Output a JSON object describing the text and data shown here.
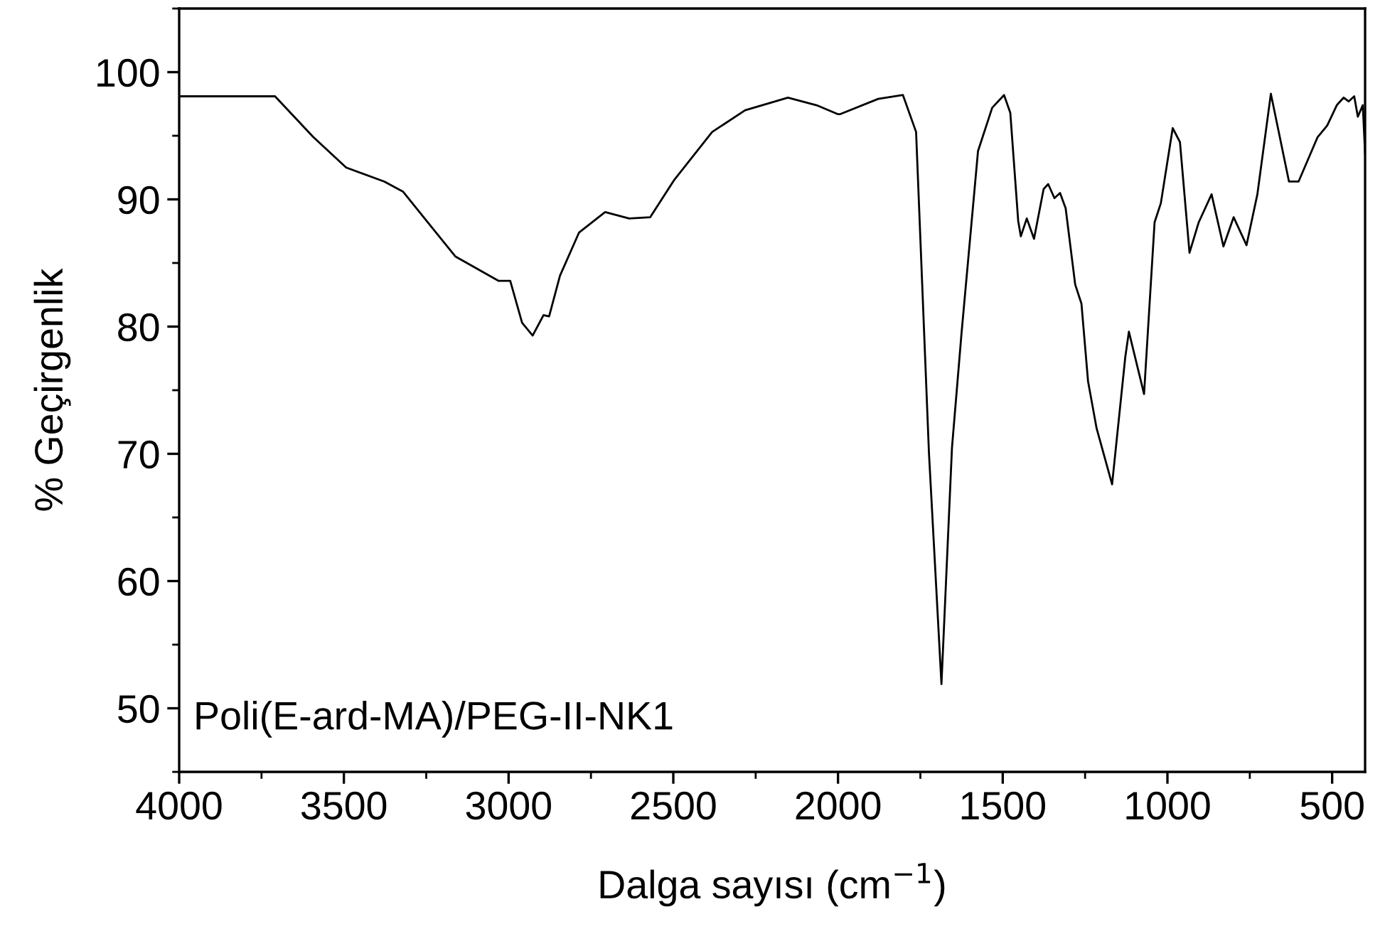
{
  "chart_data": {
    "type": "line",
    "xlabel": "Dalga sayısı (cm$^{−1}$)",
    "ylabel": "% Geçirgenlik",
    "annotations": [
      "Poli(E-ard-MA)/PEG-II-NK1"
    ],
    "xlim": [
      4000,
      400
    ],
    "xticks": [
      4000,
      3500,
      3000,
      2500,
      2000,
      1500,
      1000,
      500
    ],
    "ylim": [
      45,
      105
    ],
    "yticks": [
      50,
      60,
      70,
      80,
      90,
      100
    ],
    "grid": false,
    "series": [
      {
        "color": "#000000",
        "x": [
          4000,
          3709,
          3593,
          3493,
          3377,
          3320,
          3233,
          3161,
          3031,
          2995,
          2959,
          2927,
          2894,
          2877,
          2844,
          2786,
          2707,
          2634,
          2570,
          2498,
          2382,
          2282,
          2152,
          2065,
          2001,
          1993,
          1878,
          1803,
          1763,
          1724,
          1686,
          1654,
          1625,
          1575,
          1532,
          1496,
          1477,
          1453,
          1445,
          1427,
          1405,
          1376,
          1362,
          1343,
          1326,
          1309,
          1280,
          1261,
          1241,
          1215,
          1168,
          1128,
          1117,
          1071,
          1039,
          1020,
          984,
          962,
          933,
          905,
          866,
          830,
          799,
          760,
          727,
          686,
          631,
          602,
          544,
          515,
          486,
          465,
          450,
          433,
          422,
          407,
          400
        ],
        "values": [
          98.1,
          98.1,
          94.9,
          92.5,
          91.4,
          90.6,
          87.8,
          85.5,
          83.6,
          83.6,
          80.3,
          79.3,
          80.9,
          80.8,
          84.0,
          87.4,
          89.0,
          88.5,
          88.6,
          91.5,
          95.3,
          97.0,
          98.0,
          97.4,
          96.7,
          96.7,
          97.9,
          98.2,
          95.3,
          70.1,
          51.9,
          70.5,
          79.5,
          93.8,
          97.2,
          98.2,
          96.8,
          88.3,
          87.1,
          88.5,
          86.9,
          90.8,
          91.2,
          90.1,
          90.5,
          89.3,
          83.3,
          81.8,
          75.7,
          72.0,
          67.6,
          77.6,
          79.6,
          74.7,
          88.2,
          89.7,
          95.6,
          94.5,
          85.8,
          88.2,
          90.4,
          86.3,
          88.6,
          86.4,
          90.4,
          98.3,
          91.4,
          91.4,
          94.9,
          95.8,
          97.4,
          98.0,
          97.7,
          98.1,
          96.5,
          97.4,
          93.6
        ]
      }
    ]
  }
}
